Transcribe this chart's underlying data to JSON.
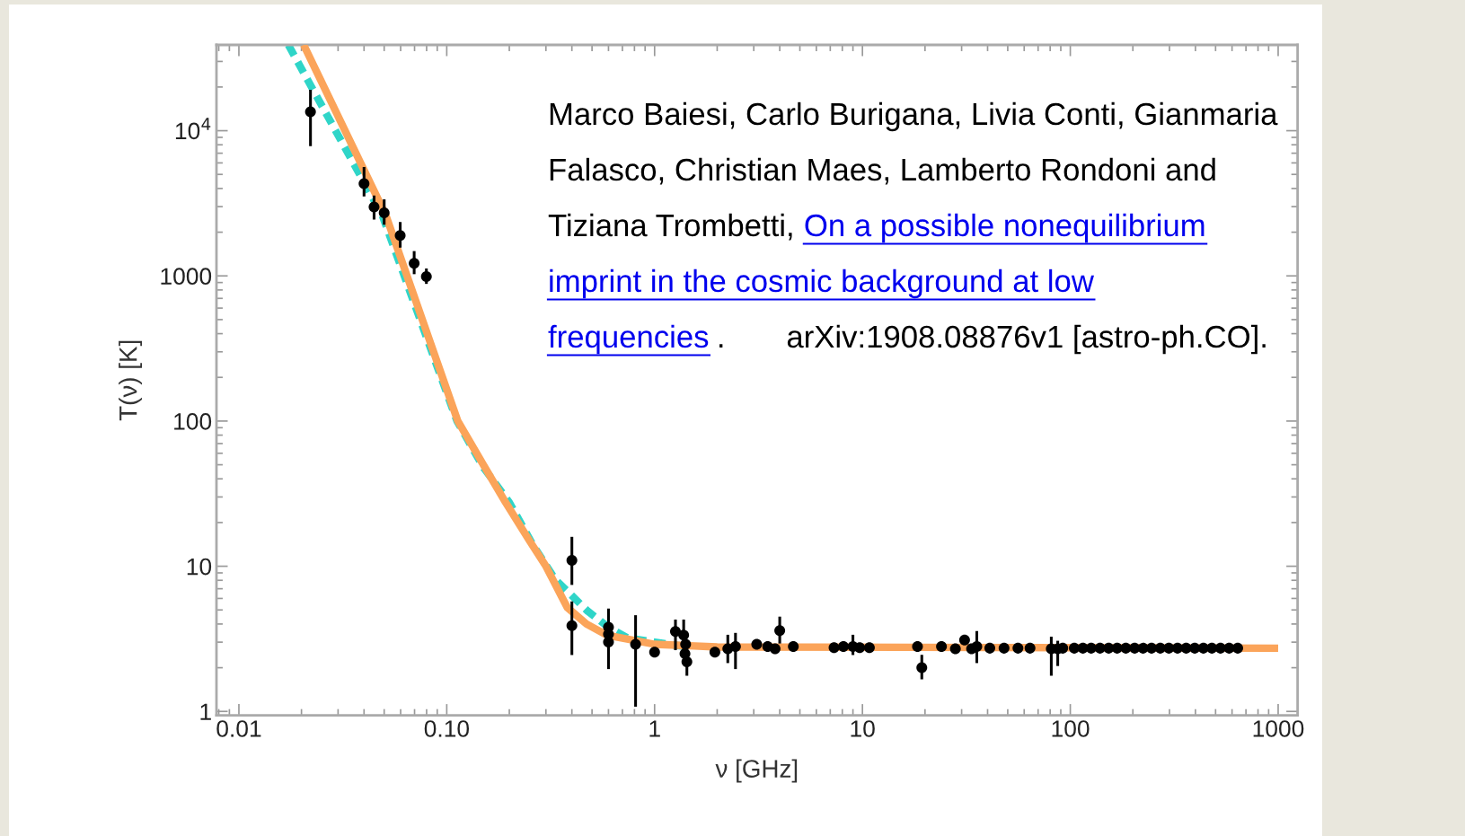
{
  "chart_data": {
    "type": "scatter",
    "xlabel": "ν [GHz]",
    "ylabel": "T(ν) [K]",
    "log": "xy",
    "xlim": [
      0.0078,
      1240
    ],
    "ylim": [
      0.94,
      39000
    ],
    "xticks": [
      0.01,
      {
        "value": 0.1,
        "label": "0.10"
      },
      1,
      10,
      100,
      1000
    ],
    "yticks": [
      1,
      10,
      100,
      1000,
      {
        "value": 10000,
        "label": "10$^{4}$"
      }
    ],
    "grid": false,
    "legend": false,
    "series": [
      {
        "type": "line",
        "color": "#2fd5c8",
        "line_style": "dashed",
        "x": [
          0.0173,
          0.049,
          0.112,
          0.15,
          0.2,
          0.26,
          0.333,
          0.477,
          0.6,
          0.744,
          1.0,
          1.4
        ],
        "values": [
          39000,
          2600,
          100,
          48,
          27.5,
          14,
          8.1,
          4.9,
          3.8,
          3.2,
          3.0,
          2.8
        ]
      },
      {
        "type": "line",
        "color": "#fba45a",
        "line_style": "solid",
        "x": [
          0.0205,
          0.051,
          0.113,
          0.15,
          0.192,
          0.25,
          0.3,
          0.38,
          0.47,
          0.59,
          1.0,
          2.0,
          1000
        ],
        "values": [
          39000,
          2600,
          100,
          50,
          27.5,
          15,
          10,
          5.2,
          4.0,
          3.35,
          2.9,
          2.78,
          2.725
        ]
      },
      {
        "color": "#000000",
        "marker": "circle",
        "x": [
          0.0221,
          0.04,
          0.0447,
          0.05,
          0.0597,
          0.0697,
          0.0798,
          0.4,
          0.4,
          0.6,
          0.6,
          0.6,
          0.81,
          1.0,
          1.26,
          1.38,
          1.4,
          1.41,
          1.43,
          1.95,
          2.25,
          2.45,
          3.1,
          3.5,
          3.8,
          4.0,
          4.65,
          7.3,
          8.1,
          9.0,
          9.7,
          10.8,
          18.4,
          19.3,
          24,
          28,
          31,
          33.5,
          35.5,
          41,
          48,
          56,
          64,
          81,
          87,
          92,
          104.5,
          115,
          126,
          139,
          153,
          168,
          185,
          204,
          224,
          246,
          271,
          298,
          328,
          361,
          397,
          437,
          480,
          528,
          581,
          639
        ],
        "values": [
          13500,
          4320,
          2980,
          2720,
          1900,
          1220,
          990,
          11,
          3.9,
          3.8,
          3.0,
          3.4,
          2.9,
          2.56,
          3.55,
          3.35,
          2.5,
          2.9,
          2.2,
          2.56,
          2.7,
          2.8,
          2.9,
          2.8,
          2.7,
          3.6,
          2.8,
          2.75,
          2.8,
          2.8,
          2.75,
          2.75,
          2.8,
          2.0,
          2.8,
          2.7,
          3.1,
          2.7,
          2.8,
          2.725,
          2.725,
          2.725,
          2.725,
          2.7,
          2.7,
          2.725,
          2.725,
          2.725,
          2.725,
          2.725,
          2.725,
          2.725,
          2.725,
          2.725,
          2.725,
          2.725,
          2.725,
          2.725,
          2.725,
          2.725,
          2.725,
          2.725,
          2.725,
          2.725,
          2.725,
          2.725
        ],
        "errors": [
          [
            8000,
            18700
          ],
          [
            3600,
            5500
          ],
          [
            2500,
            3500
          ],
          [
            2300,
            3300
          ],
          [
            1600,
            2300
          ],
          [
            1050,
            1450
          ],
          [
            900,
            1100
          ],
          [
            7.6,
            15.6
          ],
          [
            2.5,
            5.6
          ],
          [
            2.0,
            5.0
          ],
          null,
          null,
          [
            1.1,
            4.5
          ],
          null,
          [
            2.7,
            4.2
          ],
          [
            2.4,
            4.2
          ],
          null,
          null,
          [
            1.8,
            2.6
          ],
          null,
          [
            2.2,
            3.3
          ],
          [
            2.0,
            3.4
          ],
          null,
          null,
          null,
          [
            3.0,
            4.4
          ],
          null,
          null,
          null,
          [
            2.5,
            3.3
          ],
          null,
          null,
          null,
          [
            1.7,
            2.4
          ],
          null,
          null,
          null,
          null,
          [
            2.2,
            3.5
          ],
          null,
          null,
          null,
          null,
          [
            1.8,
            3.2
          ],
          [
            2.1,
            3.0
          ],
          null,
          null,
          null,
          null,
          null,
          null,
          null,
          null,
          null,
          null,
          null,
          null,
          null,
          null,
          null,
          null,
          null,
          null,
          null,
          null,
          null
        ]
      }
    ],
    "annotations": [
      "Marco Baiesi, Carlo Burigana, Livia Conti, Gianmaria",
      "Falasco, Christian Maes, Lamberto Rondoni and",
      "Tiziana Trombetti,",
      "On a possible nonequilibrium",
      "imprint in the cosmic background at low",
      "frequencies",
      ".",
      "arXiv:1908.08876v1 [astro-ph.CO]."
    ]
  }
}
